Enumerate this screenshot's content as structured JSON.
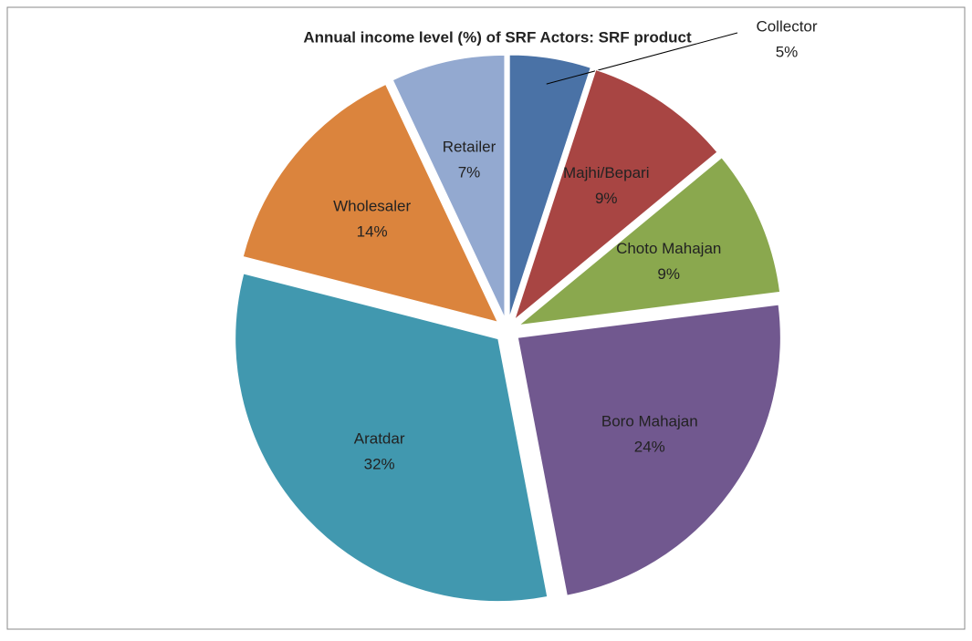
{
  "chart_data": {
    "type": "pie",
    "title": "Annual income level (%) of SRF Actors: SRF product",
    "categories": [
      "Collector",
      "Majhi/Bepari",
      "Choto Mahajan",
      "Boro Mahajan",
      "Aratdar",
      "Wholesaler",
      "Retailer"
    ],
    "values": [
      5,
      9,
      9,
      24,
      32,
      14,
      7
    ],
    "value_labels": [
      "5%",
      "9%",
      "9%",
      "24%",
      "32%",
      "14%",
      "7%"
    ],
    "colors": [
      "#4a72a6",
      "#a84543",
      "#8aa84e",
      "#71588f",
      "#4198af",
      "#db843d",
      "#93a9d0"
    ]
  }
}
